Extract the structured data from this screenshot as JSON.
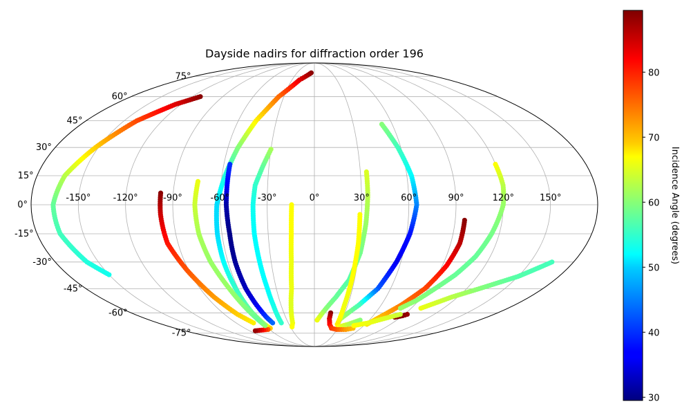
{
  "chart_data": {
    "type": "scatter",
    "projection": "mollweide",
    "title": "Dayside nadirs for diffraction order 196",
    "grid": true,
    "lon_ticks": [
      -150,
      -120,
      -90,
      -60,
      -30,
      0,
      30,
      60,
      90,
      120,
      150
    ],
    "lat_ticks": [
      -75,
      -60,
      -45,
      -30,
      -15,
      0,
      15,
      30,
      45,
      60,
      75
    ],
    "lon_tick_labels": [
      "-150°",
      "-120°",
      "-90°",
      "-60°",
      "-30°",
      "0°",
      "30°",
      "60°",
      "90°",
      "120°",
      "150°"
    ],
    "lat_tick_labels": [
      "-75°",
      "-60°",
      "-45°",
      "-30°",
      "-15°",
      "0°",
      "15°",
      "30°",
      "45°",
      "60°",
      "75°"
    ],
    "colorbar": {
      "label": "Incidence Angle (degrees)",
      "colormap": "jet",
      "range": [
        29.5,
        89.5
      ],
      "ticks": [
        30,
        40,
        50,
        60,
        70,
        80
      ],
      "tick_labels": [
        "30",
        "40",
        "50",
        "60",
        "70",
        "80"
      ]
    },
    "series": [
      {
        "points": [
          [
            -5.5,
            78,
            89
          ],
          [
            -20,
            72,
            84
          ],
          [
            -35,
            60,
            76
          ],
          [
            -46,
            45,
            68
          ],
          [
            -53,
            30,
            60
          ],
          [
            -58,
            15,
            54
          ],
          [
            -62,
            0,
            50
          ],
          [
            -63,
            -15,
            50
          ],
          [
            -63,
            -30,
            52
          ],
          [
            -62,
            -45,
            55
          ],
          [
            -61,
            -60,
            58
          ],
          [
            -59,
            -68,
            62
          ],
          [
            -57,
            -71,
            70
          ],
          [
            -62,
            -72,
            77
          ],
          [
            -72,
            -72.5,
            83
          ],
          [
            -82,
            -73,
            88
          ]
        ]
      },
      {
        "points": [
          [
            -112,
            60,
            89
          ],
          [
            -125,
            55,
            84
          ],
          [
            -140,
            45,
            78
          ],
          [
            -152,
            30,
            70
          ],
          [
            -162,
            15,
            63
          ],
          [
            -166,
            0,
            58
          ],
          [
            -165,
            -15,
            56
          ],
          [
            -158,
            -30,
            54
          ],
          [
            -150,
            -37,
            53
          ]
        ]
      },
      {
        "points": [
          [
            -98,
            6,
            89
          ],
          [
            -98,
            -5,
            85
          ],
          [
            -97,
            -20,
            81
          ],
          [
            -91,
            -35,
            77
          ],
          [
            -84,
            -50,
            73
          ],
          [
            -77,
            -61,
            70
          ],
          [
            -70,
            -67,
            68
          ]
        ]
      },
      {
        "points": [
          [
            -75,
            12,
            66
          ],
          [
            -76,
            0,
            64
          ],
          [
            -75,
            -15,
            62
          ],
          [
            -72,
            -30,
            61
          ],
          [
            -67,
            -45,
            61
          ],
          [
            -64,
            -55,
            60
          ],
          [
            -61,
            -65,
            58
          ],
          [
            -60,
            -69,
            60
          ]
        ]
      },
      {
        "points": [
          [
            -56,
            21,
            40
          ],
          [
            -56,
            10,
            37
          ],
          [
            -56,
            0,
            32
          ],
          [
            -55,
            -15,
            30
          ],
          [
            -55,
            -30,
            31
          ],
          [
            -54,
            -45,
            33
          ],
          [
            -52,
            -55,
            36
          ],
          [
            -50,
            -63,
            40
          ],
          [
            -48,
            -67,
            43
          ]
        ]
      },
      {
        "points": [
          [
            -30,
            29,
            62
          ],
          [
            -34,
            20,
            58
          ],
          [
            -38,
            10,
            55
          ],
          [
            -39,
            0,
            53
          ],
          [
            -39,
            -15,
            52
          ],
          [
            -38,
            -30,
            52
          ],
          [
            -37,
            -45,
            52
          ],
          [
            -37,
            -55,
            53
          ],
          [
            -38,
            -67,
            55
          ]
        ]
      },
      {
        "points": [
          [
            -14.5,
            0,
            67
          ],
          [
            -15,
            -15,
            67
          ],
          [
            -16,
            -30,
            66
          ],
          [
            -18,
            -45,
            66
          ],
          [
            -21,
            -55,
            65
          ],
          [
            -25,
            -67,
            66
          ],
          [
            -28,
            -70,
            67
          ]
        ]
      },
      {
        "points": [
          [
            34,
            17,
            65
          ],
          [
            34,
            5,
            63
          ],
          [
            33,
            -10,
            61
          ],
          [
            31,
            -25,
            59
          ],
          [
            26,
            -40,
            57
          ],
          [
            18,
            -50,
            58
          ],
          [
            10,
            -58,
            60
          ],
          [
            3,
            -65,
            66
          ]
        ]
      },
      {
        "points": [
          [
            52,
            43,
            60
          ],
          [
            58,
            30,
            56
          ],
          [
            63,
            15,
            52
          ],
          [
            65,
            0,
            45
          ],
          [
            62,
            -15,
            38
          ],
          [
            57,
            -30,
            36
          ],
          [
            50,
            -45,
            42
          ],
          [
            40,
            -55,
            56
          ],
          [
            28,
            -64,
            62
          ]
        ]
      },
      {
        "points": [
          [
            29,
            -5,
            67
          ],
          [
            29,
            -20,
            67
          ],
          [
            28,
            -40,
            67
          ],
          [
            27,
            -55,
            66
          ],
          [
            27,
            -63,
            67
          ],
          [
            27,
            -68,
            68
          ],
          [
            30,
            -70,
            67
          ],
          [
            40,
            -68,
            63
          ],
          [
            50,
            -65,
            60
          ]
        ]
      },
      {
        "points": [
          [
            16,
            -60,
            89
          ],
          [
            16,
            -64,
            85
          ],
          [
            18,
            -68,
            82
          ],
          [
            22,
            -71,
            79
          ],
          [
            30,
            -72,
            77
          ],
          [
            42,
            -72,
            73
          ],
          [
            50,
            -71,
            71
          ]
        ]
      },
      {
        "points": [
          [
            96,
            -8,
            89
          ],
          [
            96,
            -20,
            86
          ],
          [
            93,
            -32,
            82
          ],
          [
            87,
            -45,
            78
          ],
          [
            78,
            -55,
            75
          ],
          [
            68,
            -63,
            71
          ],
          [
            62,
            -68,
            69
          ]
        ]
      },
      {
        "points": [
          [
            120,
            21,
            67
          ],
          [
            121,
            10,
            63
          ],
          [
            120,
            0,
            61
          ],
          [
            115,
            -15,
            59
          ],
          [
            110,
            -27,
            58
          ],
          [
            103,
            -37,
            58
          ],
          [
            95,
            -45,
            59
          ],
          [
            88,
            -52,
            60
          ],
          [
            80,
            -57,
            61
          ]
        ]
      },
      {
        "points": [
          [
            93,
            -61,
            88
          ],
          [
            90,
            -62,
            89
          ],
          [
            84,
            -63,
            89
          ]
        ]
      },
      {
        "points": [
          [
            99,
            -57,
            66
          ],
          [
            115,
            -50,
            63
          ],
          [
            130,
            -45,
            60
          ],
          [
            150,
            -38,
            57
          ],
          [
            165,
            -30,
            56
          ]
        ]
      },
      {
        "points": [
          [
            48,
            -69,
            67
          ],
          [
            62,
            -67,
            66
          ],
          [
            74,
            -64,
            65
          ],
          [
            86,
            -61,
            64
          ]
        ]
      }
    ]
  }
}
